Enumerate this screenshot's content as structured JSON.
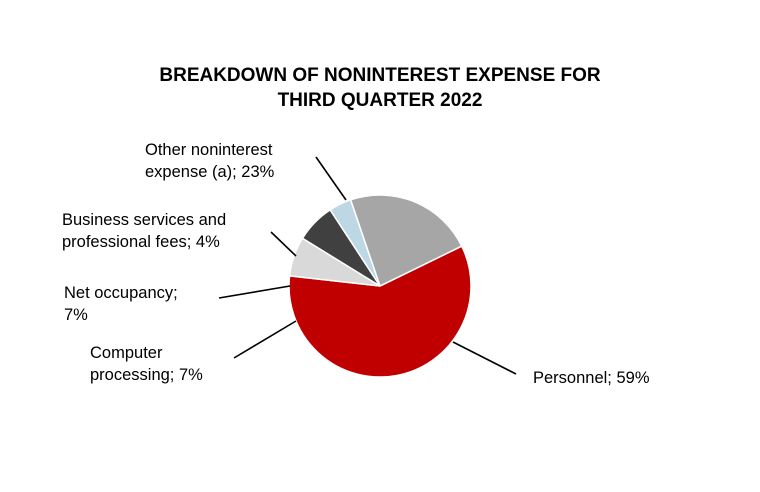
{
  "chart_data": {
    "type": "pie",
    "title_lines": [
      "BREAKDOWN OF NONINTEREST EXPENSE FOR",
      "THIRD QUARTER 2022"
    ],
    "slices": [
      {
        "label_lines": [
          "Personnel; 59%"
        ],
        "value": 59,
        "color": "#c00000"
      },
      {
        "label_lines": [
          "Computer",
          "processing; 7%"
        ],
        "value": 7,
        "color": "#d9d9d9"
      },
      {
        "label_lines": [
          "Net occupancy;",
          "7%"
        ],
        "value": 7,
        "color": "#404040"
      },
      {
        "label_lines": [
          "Business services and",
          "professional fees; 4%"
        ],
        "value": 4,
        "color": "#bdd7e4"
      },
      {
        "label_lines": [
          "Other noninterest",
          "expense (a); 23%"
        ],
        "value": 23,
        "color": "#a6a6a6"
      }
    ]
  }
}
